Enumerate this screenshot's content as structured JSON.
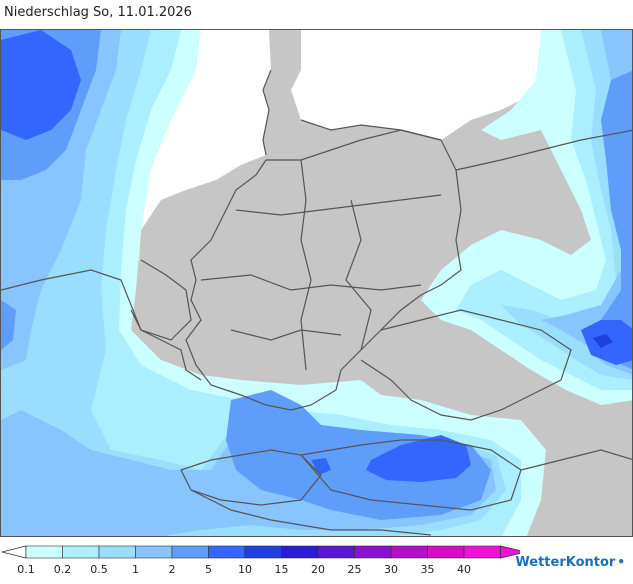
{
  "title": "Niederschlag So, 11.01.2026",
  "legend": {
    "labels": [
      "0.1",
      "0.2",
      "0.5",
      "1",
      "2",
      "5",
      "10",
      "15",
      "20",
      "25",
      "30",
      "35",
      "40"
    ],
    "colors": [
      "#ccffff",
      "#aaeeff",
      "#99ddff",
      "#88c4ff",
      "#5f9dfb",
      "#3366ff",
      "#1f3fe0",
      "#2b1cd6",
      "#5a18d0",
      "#8a12cc",
      "#b30ec8",
      "#d80cc6",
      "#f010d8"
    ]
  },
  "brand": "WetterKontor",
  "map_colors": {
    "land": "#c6c6c6",
    "sea": "#ffffff",
    "border": "#555555",
    "precip_0_1": "#ccffff",
    "precip_0_2": "#aaeeff",
    "precip_0_5": "#99ddff",
    "precip_1": "#88c4ff",
    "precip_2": "#5f9dfb",
    "precip_5": "#3366ff",
    "precip_10": "#1f3fe0"
  }
}
